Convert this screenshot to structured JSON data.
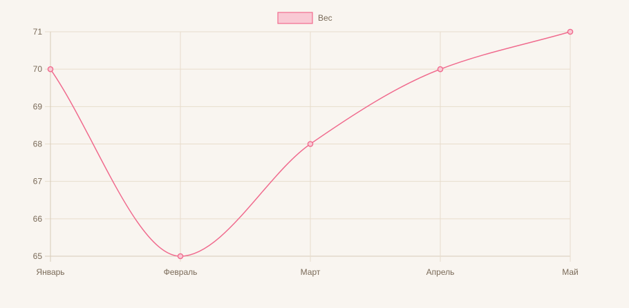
{
  "chart_data": {
    "type": "line",
    "categories": [
      "Январь",
      "Февраль",
      "Март",
      "Апрель",
      "Май"
    ],
    "series": [
      {
        "name": "Вес",
        "values": [
          70,
          65,
          68,
          70,
          71
        ],
        "color": "#f06b8e",
        "fill": "#f9c9d4"
      }
    ],
    "ylim": [
      65,
      71
    ],
    "yticks": [
      65,
      66,
      67,
      68,
      69,
      70,
      71
    ],
    "grid": true,
    "legend": "top-center",
    "colors": {
      "background": "#f9f5f0",
      "grid": "#e8dccb",
      "axis": "#d8cbb9",
      "text": "#7a6a58"
    }
  }
}
